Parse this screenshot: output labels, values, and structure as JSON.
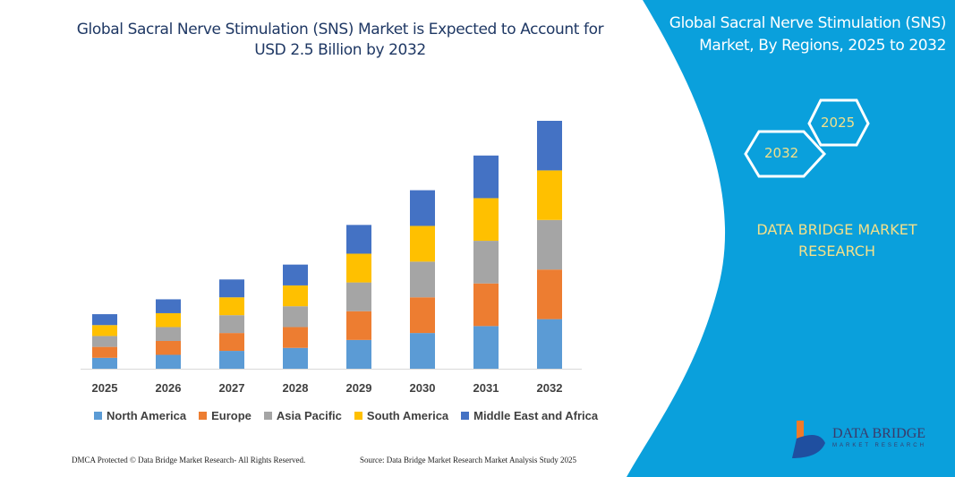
{
  "header": {
    "title": "Global Sacral Nerve Stimulation (SNS) Market is Expected to Account for USD 2.5 Billion by 2032"
  },
  "side_panel": {
    "title": "Global Sacral Nerve Stimulation (SNS) Market, By Regions, 2025 to 2032",
    "hex_years": [
      "2025",
      "2032"
    ],
    "brand": "DATA BRIDGE MARKET RESEARCH",
    "logo_text": "DATA BRIDGE",
    "logo_subtext": "MARKET RESEARCH",
    "color": "#0aa0dc"
  },
  "footer": {
    "left": "DMCA Protected © Data Bridge Market Research-  All Rights Reserved.",
    "right": "Source: Data Bridge Market Research  Market Analysis Study 2025"
  },
  "chart_data": {
    "type": "bar",
    "stacked": true,
    "title": "Global Sacral Nerve Stimulation (SNS) Market is Expected to Account for USD 2.5 Billion by 2032",
    "categories": [
      "2025",
      "2026",
      "2027",
      "2028",
      "2029",
      "2030",
      "2031",
      "2032"
    ],
    "series": [
      {
        "name": "North America",
        "color": "#5b9bd5",
        "values": [
          0.11,
          0.14,
          0.18,
          0.21,
          0.29,
          0.36,
          0.43,
          0.5
        ]
      },
      {
        "name": "Europe",
        "color": "#ed7d31",
        "values": [
          0.11,
          0.14,
          0.18,
          0.21,
          0.29,
          0.36,
          0.43,
          0.5
        ]
      },
      {
        "name": "Asia Pacific",
        "color": "#a5a5a5",
        "values": [
          0.11,
          0.14,
          0.18,
          0.21,
          0.29,
          0.36,
          0.43,
          0.5
        ]
      },
      {
        "name": "South America",
        "color": "#ffc000",
        "values": [
          0.11,
          0.14,
          0.18,
          0.21,
          0.29,
          0.36,
          0.43,
          0.5
        ]
      },
      {
        "name": "Middle East and Africa",
        "color": "#4472c4",
        "values": [
          0.11,
          0.14,
          0.18,
          0.21,
          0.29,
          0.36,
          0.43,
          0.5
        ]
      }
    ],
    "ylim": [
      0,
      2.5
    ],
    "y_axis_shown": false,
    "grid": false,
    "legend": "bottom"
  }
}
